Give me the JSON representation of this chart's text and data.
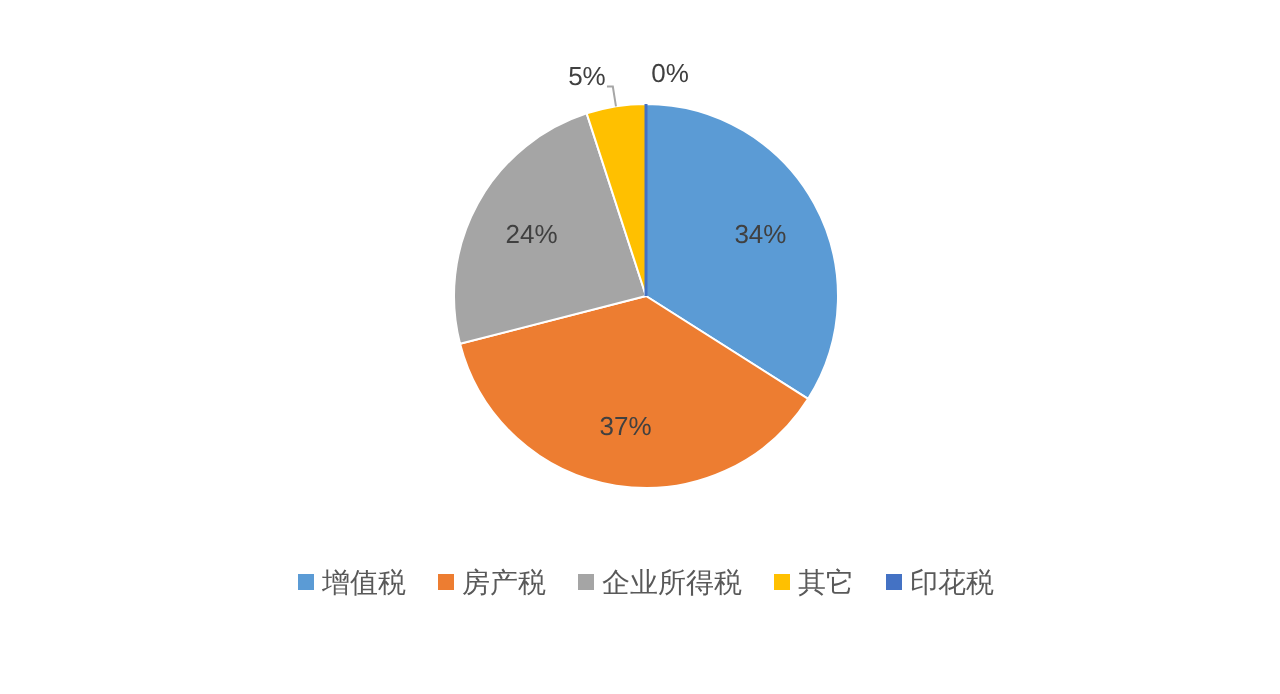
{
  "chart_data": {
    "type": "pie",
    "categories": [
      "增值税",
      "房产税",
      "企业所得税",
      "其它",
      "印花税"
    ],
    "values": [
      34,
      37,
      24,
      5,
      0
    ],
    "colors": [
      "#5b9bd5",
      "#ed7d31",
      "#a5a5a5",
      "#ffc000",
      "#4472c4"
    ],
    "value_labels": [
      "34%",
      "37%",
      "24%",
      "5%",
      "0%"
    ],
    "legend": "bottom"
  }
}
